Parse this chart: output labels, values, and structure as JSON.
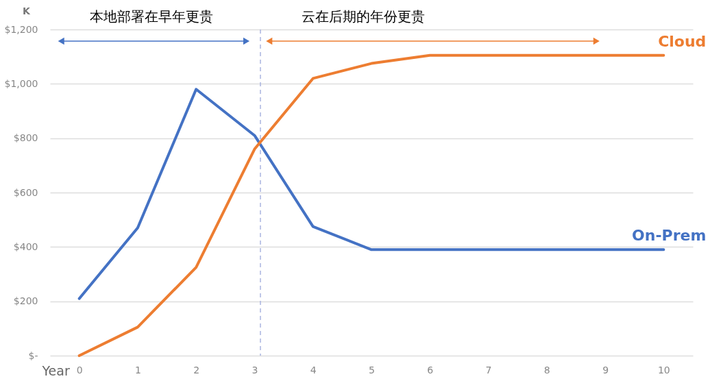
{
  "chart_data": {
    "type": "line",
    "xlabel": "Year",
    "ylabel": "K",
    "annotations": [
      "本地部署在早年更贵",
      "云在后期的年份更贵"
    ],
    "x": [
      0,
      1,
      2,
      3,
      4,
      5,
      6,
      7,
      8,
      9,
      10
    ],
    "series": [
      {
        "name": "On-Prem",
        "color": "#4472c4",
        "values": [
          210,
          470,
          980,
          810,
          475,
          390,
          390,
          390,
          390,
          390,
          390
        ]
      },
      {
        "name": "Cloud",
        "color": "#ed7d31",
        "values": [
          0,
          105,
          325,
          760,
          1020,
          1075,
          1105,
          1105,
          1105,
          1105,
          1105
        ]
      }
    ],
    "xlim": [
      -0.5,
      10.5
    ],
    "xticks": [
      0,
      1,
      2,
      3,
      4,
      5,
      6,
      7,
      8,
      9,
      10
    ],
    "ylim": [
      0,
      1200
    ],
    "yticks": [
      {
        "value": 0,
        "label": "$-"
      },
      {
        "value": 200,
        "label": "$200"
      },
      {
        "value": 400,
        "label": "$400"
      },
      {
        "value": 600,
        "label": "$600"
      },
      {
        "value": 800,
        "label": "$800"
      },
      {
        "value": 1000,
        "label": "$1,000"
      },
      {
        "value": 1200,
        "label": "$1,200"
      }
    ],
    "ref_lines": [
      {
        "axis": "x",
        "value": 3.1,
        "color": "#aab4e0",
        "line_style": "dashed"
      }
    ],
    "grid": "y",
    "legend": false,
    "line_style": "solid",
    "marker": "none"
  }
}
